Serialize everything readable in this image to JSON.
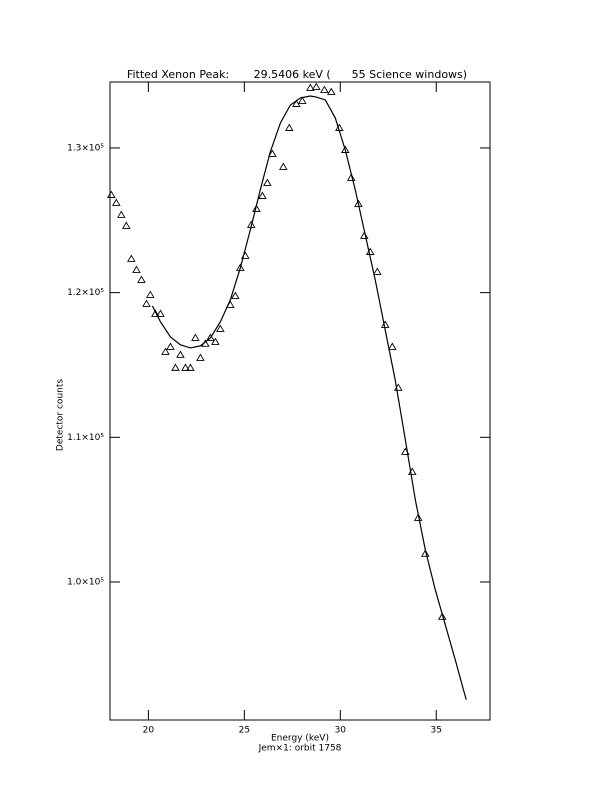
{
  "chart_data": {
    "type": "scatter",
    "title": "Fitted Xenon Peak:       29.5406 keV (      55 Science windows)",
    "x_label": "Energy (keV)",
    "subtitle": "Jem×1: orbit 1758",
    "y_label": "Detector counts",
    "xlim": [
      18,
      37.8
    ],
    "ylim": [
      90460,
      134560
    ],
    "xticks": [
      20,
      25,
      30,
      35
    ],
    "yticks": [
      {
        "value": 100000,
        "label": "1.0×10⁵"
      },
      {
        "value": 110000,
        "label": "1.1×10⁵"
      },
      {
        "value": 120000,
        "label": "1.2×10⁵"
      },
      {
        "value": 130000,
        "label": "1.3×10⁵"
      }
    ],
    "series": [
      {
        "type": "scatter",
        "color": "#000000",
        "x": [
          18.07,
          18.33,
          18.59,
          18.85,
          19.11,
          19.38,
          19.64,
          19.9,
          20.1,
          20.36,
          20.63,
          20.89,
          21.15,
          21.41,
          21.67,
          21.93,
          22.19,
          22.45,
          22.71,
          22.97,
          23.23,
          23.49,
          23.75,
          24.27,
          24.53,
          24.79,
          25.05,
          25.36,
          25.63,
          25.94,
          26.2,
          26.46,
          27.03,
          27.34,
          27.71,
          28.02,
          28.44,
          28.75,
          29.17,
          29.53,
          29.95,
          30.26,
          30.57,
          30.94,
          31.25,
          31.56,
          31.93,
          32.34,
          32.71,
          33.02,
          33.39,
          33.75,
          34.06,
          34.43,
          35.31
        ],
        "values": [
          126750,
          126200,
          125370,
          124610,
          122330,
          121570,
          120880,
          119220,
          119840,
          118530,
          118530,
          115900,
          116250,
          114800,
          115700,
          114800,
          114800,
          116870,
          115490,
          116460,
          116870,
          116590,
          117490,
          119150,
          119770,
          121710,
          122540,
          124680,
          125790,
          126680,
          127580,
          129590,
          128690,
          131380,
          133040,
          133250,
          134150,
          134220,
          134010,
          133870,
          131380,
          129860,
          127930,
          126130,
          123920,
          122810,
          121430,
          117770,
          116250,
          113420,
          108990,
          107610,
          104430,
          101950,
          97590
        ]
      },
      {
        "type": "line",
        "color": "#000000",
        "x": [
          20.21,
          20.63,
          21.15,
          21.67,
          22.19,
          22.71,
          23.23,
          23.75,
          24.27,
          24.79,
          25.31,
          25.83,
          26.35,
          26.88,
          27.4,
          27.92,
          28.44,
          28.75,
          29.22,
          29.74,
          30.26,
          30.78,
          31.3,
          31.82,
          32.34,
          32.86,
          33.39,
          33.91,
          34.43,
          34.95,
          35.47,
          35.99,
          36.56
        ],
        "values": [
          119080,
          117980,
          116940,
          116390,
          116180,
          116320,
          116870,
          117980,
          119500,
          121710,
          124330,
          127100,
          129720,
          131730,
          132970,
          133460,
          133590,
          133520,
          133320,
          132070,
          129860,
          127100,
          123990,
          120880,
          117420,
          113970,
          109820,
          105680,
          102220,
          99460,
          97040,
          94620,
          91860
        ]
      }
    ]
  }
}
